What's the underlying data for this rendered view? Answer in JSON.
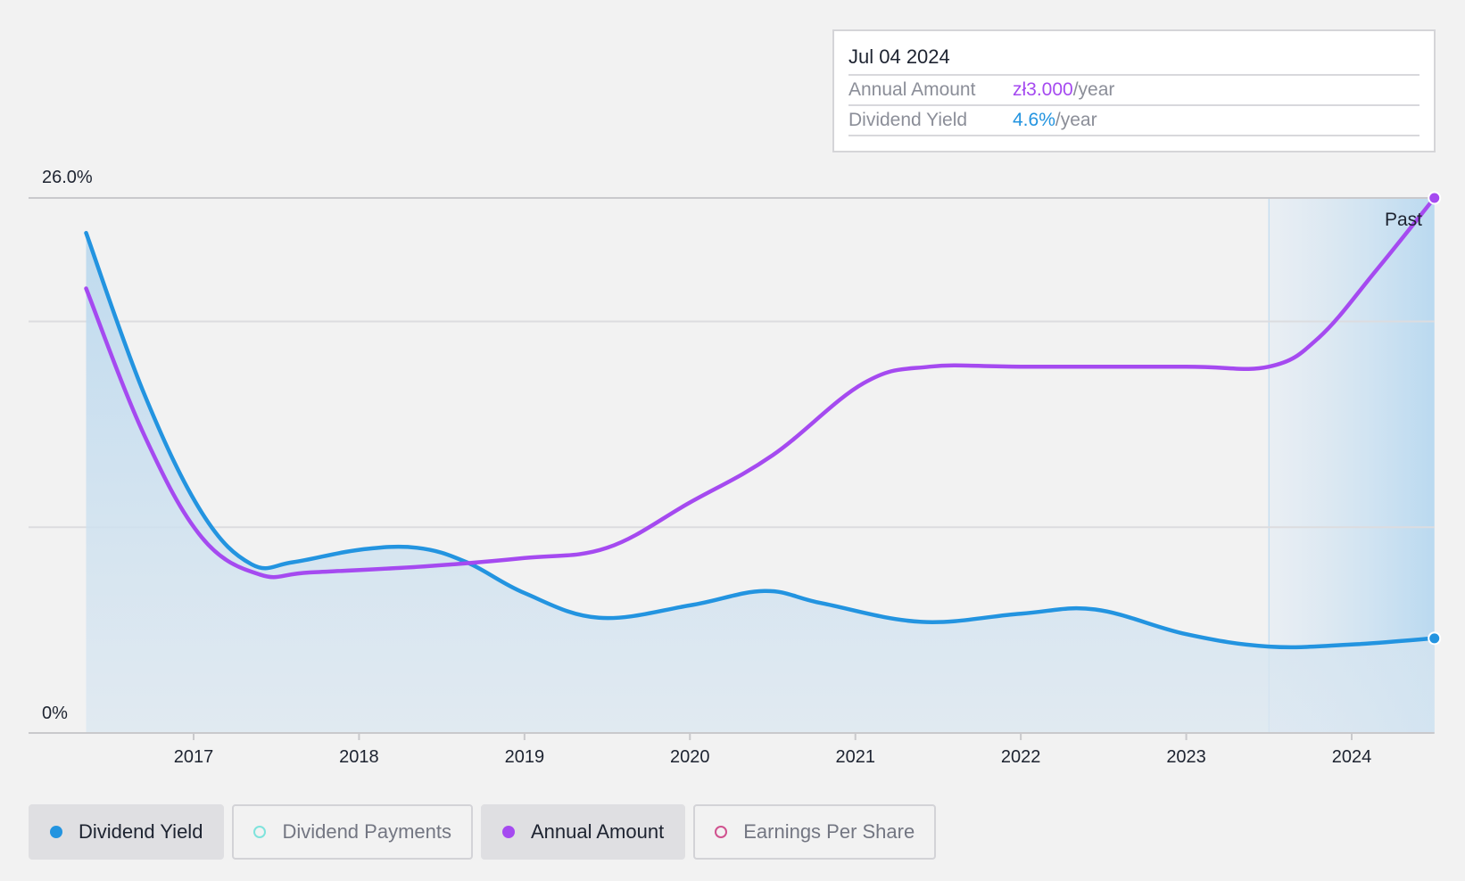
{
  "chart_data": {
    "type": "line",
    "x_tick_labels": [
      "2017",
      "2018",
      "2019",
      "2020",
      "2021",
      "2022",
      "2023",
      "2024"
    ],
    "x_ticks": [
      2017,
      2018,
      2019,
      2020,
      2021,
      2022,
      2023,
      2024
    ],
    "xlim": [
      2015.65,
      2024.5
    ],
    "y_top_label": "26.0%",
    "y_bottom_label": "0%",
    "ylim": [
      0,
      26.0
    ],
    "gridlines": [
      0,
      10,
      20,
      26
    ],
    "forecast_boundary_x": 2023.5,
    "past_label": "Past",
    "series": [
      {
        "name": "Dividend Yield",
        "color": "#2394e0",
        "filled": true,
        "points": [
          [
            2016.35,
            24.3
          ],
          [
            2016.7,
            16.5
          ],
          [
            2017.05,
            10.7
          ],
          [
            2017.35,
            8.2
          ],
          [
            2017.6,
            8.3
          ],
          [
            2018.0,
            8.9
          ],
          [
            2018.35,
            9.0
          ],
          [
            2018.65,
            8.3
          ],
          [
            2019.0,
            6.8
          ],
          [
            2019.45,
            5.6
          ],
          [
            2020.0,
            6.2
          ],
          [
            2020.45,
            6.9
          ],
          [
            2020.8,
            6.3
          ],
          [
            2021.4,
            5.4
          ],
          [
            2022.0,
            5.8
          ],
          [
            2022.45,
            6.0
          ],
          [
            2023.0,
            4.8
          ],
          [
            2023.5,
            4.2
          ],
          [
            2024.0,
            4.3
          ],
          [
            2024.5,
            4.6
          ]
        ]
      },
      {
        "name": "Annual Amount",
        "color": "#a54af0",
        "filled": false,
        "points": [
          [
            2016.35,
            21.6
          ],
          [
            2016.7,
            14.5
          ],
          [
            2017.05,
            9.5
          ],
          [
            2017.4,
            7.7
          ],
          [
            2017.7,
            7.8
          ],
          [
            2018.4,
            8.1
          ],
          [
            2019.0,
            8.5
          ],
          [
            2019.5,
            9.0
          ],
          [
            2020.0,
            11.2
          ],
          [
            2020.5,
            13.5
          ],
          [
            2021.05,
            17.0
          ],
          [
            2021.45,
            17.8
          ],
          [
            2022.0,
            17.8
          ],
          [
            2023.0,
            17.8
          ],
          [
            2023.5,
            17.8
          ],
          [
            2023.8,
            19.2
          ],
          [
            2024.15,
            22.5
          ],
          [
            2024.5,
            26.0
          ]
        ]
      }
    ]
  },
  "tooltip": {
    "date": "Jul 04 2024",
    "annual_label": "Annual Amount",
    "annual_value": "zł3.000",
    "annual_unit": "/year",
    "yield_label": "Dividend Yield",
    "yield_value": "4.6%",
    "yield_unit": "/year"
  },
  "legend": [
    {
      "label": "Dividend Yield",
      "color": "#2394e0",
      "active": true
    },
    {
      "label": "Dividend Payments",
      "color": "#7fe3dc",
      "active": false
    },
    {
      "label": "Annual Amount",
      "color": "#a54af0",
      "active": true
    },
    {
      "label": "Earnings Per Share",
      "color": "#d0528f",
      "active": false
    }
  ]
}
